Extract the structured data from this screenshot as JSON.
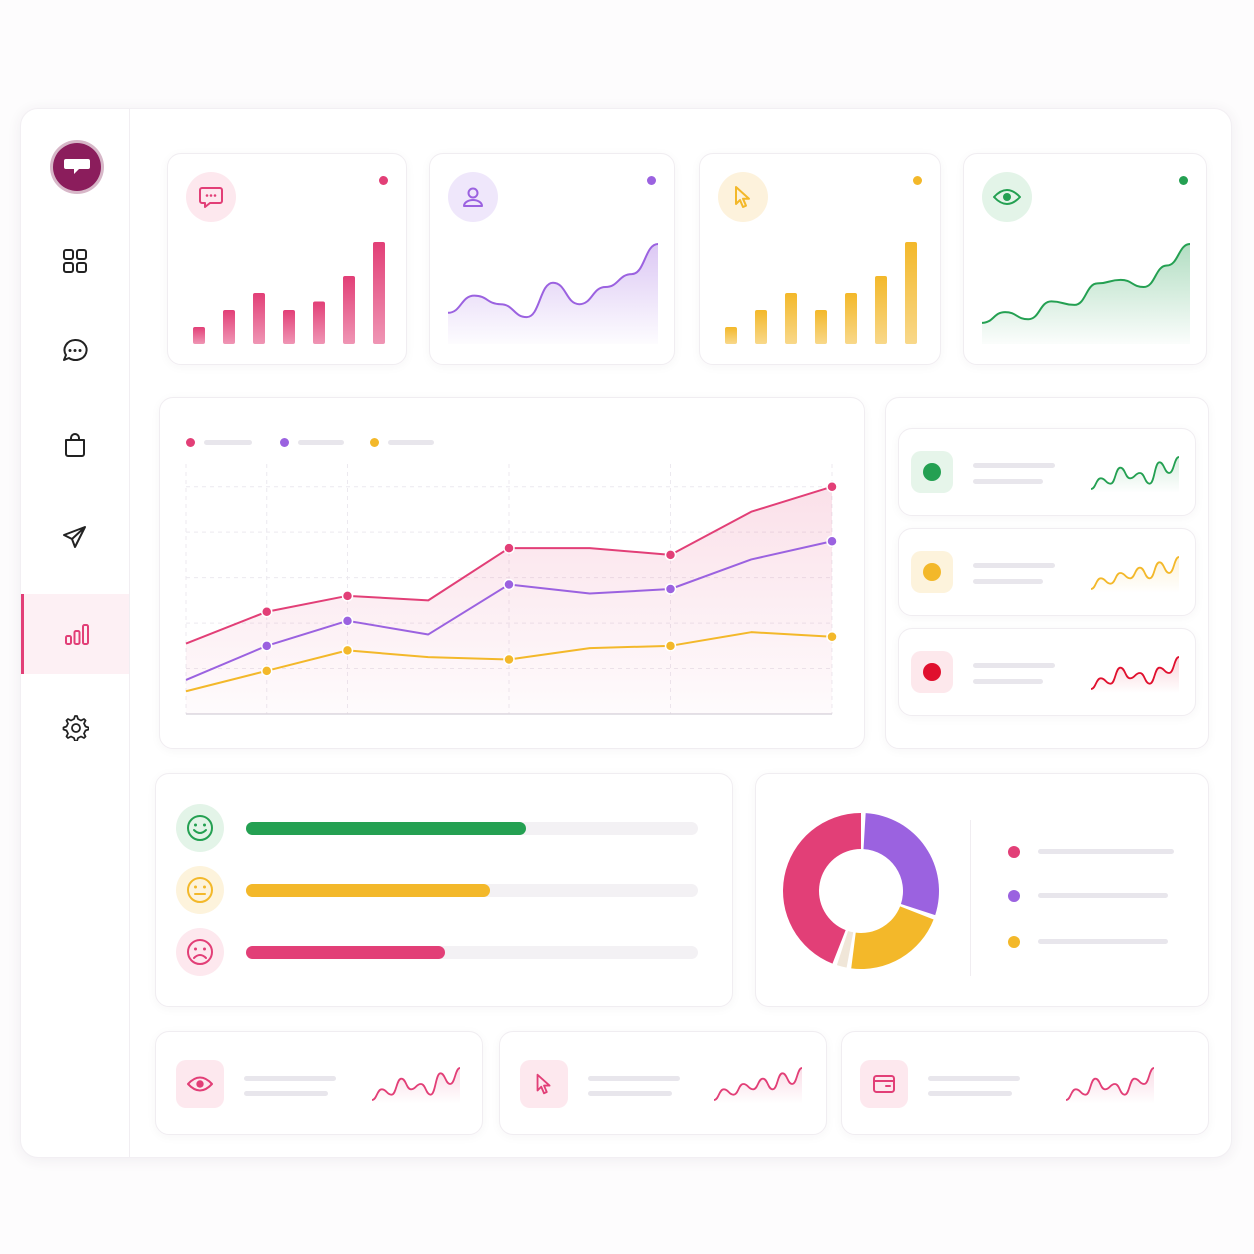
{
  "sidebar": {
    "logo": "chat-bubble-logo",
    "items": [
      {
        "icon": "grid-icon",
        "active": false
      },
      {
        "icon": "chat-icon",
        "active": false
      },
      {
        "icon": "shopping-bag-icon",
        "active": false
      },
      {
        "icon": "send-icon",
        "active": false
      },
      {
        "icon": "bar-chart-icon",
        "active": true
      },
      {
        "icon": "settings-icon",
        "active": false
      }
    ]
  },
  "colors": {
    "pink": "#e23f77",
    "purple": "#9b62e0",
    "yellow": "#f3b82a",
    "green": "#24a052",
    "red": "#e0102e"
  },
  "stat_cards": [
    {
      "icon": "message-icon",
      "color": "#e23f77",
      "chart": "bar",
      "values": [
        2,
        4,
        6,
        4,
        5,
        8,
        12
      ]
    },
    {
      "icon": "user-icon",
      "color": "#9b62e0",
      "chart": "area",
      "values": [
        2,
        4,
        3,
        1.5,
        5.5,
        3,
        5,
        6.5,
        10
      ]
    },
    {
      "icon": "cursor-icon",
      "color": "#f3b82a",
      "chart": "bar",
      "values": [
        2,
        4,
        6,
        4,
        6,
        8,
        12
      ]
    },
    {
      "icon": "eye-icon",
      "color": "#24a052",
      "chart": "area",
      "values": [
        1,
        2.5,
        1.5,
        4,
        3.5,
        6.5,
        7,
        6,
        9,
        12
      ]
    }
  ],
  "chart_data": {
    "type": "line",
    "x": [
      0,
      1,
      2,
      3,
      4,
      5,
      6,
      7,
      8
    ],
    "series": [
      {
        "color": "#e23f77",
        "values": [
          3.1,
          4.5,
          5.2,
          5.0,
          7.3,
          7.3,
          7.0,
          8.9,
          10.0
        ],
        "markers": [
          1,
          2,
          4,
          6,
          8
        ]
      },
      {
        "color": "#9b62e0",
        "values": [
          1.5,
          3.0,
          4.1,
          3.5,
          5.7,
          5.3,
          5.5,
          6.8,
          7.6
        ],
        "markers": [
          1,
          2,
          4,
          6,
          8
        ]
      },
      {
        "color": "#f3b82a",
        "values": [
          1.0,
          1.9,
          2.8,
          2.5,
          2.4,
          2.9,
          3.0,
          3.6,
          3.4
        ],
        "markers": [
          1,
          2,
          4,
          6,
          8
        ]
      }
    ],
    "ylim": [
      0,
      11
    ],
    "grid": true,
    "legend": "top-left"
  },
  "trend_list": [
    {
      "color": "#24a052",
      "icon": "dot-icon"
    },
    {
      "color": "#f3b82a",
      "icon": "dot-icon"
    },
    {
      "color": "#e0102e",
      "icon": "dot-icon"
    }
  ],
  "sentiment": [
    {
      "icon": "happy-face-icon",
      "color": "#24a052",
      "progress": 0.62
    },
    {
      "icon": "neutral-face-icon",
      "color": "#f3b82a",
      "progress": 0.54
    },
    {
      "icon": "sad-face-icon",
      "color": "#e23f77",
      "progress": 0.44
    }
  ],
  "donut": {
    "slices": [
      {
        "color": "#9b62e0",
        "value": 30
      },
      {
        "color": "#f3b82a",
        "value": 22
      },
      {
        "color": "#f0e6d8",
        "value": 3
      },
      {
        "color": "#e23f77",
        "value": 45
      }
    ]
  },
  "bottom_cards": [
    {
      "icon": "eye-icon"
    },
    {
      "icon": "cursor-icon"
    },
    {
      "icon": "wallet-icon"
    }
  ]
}
